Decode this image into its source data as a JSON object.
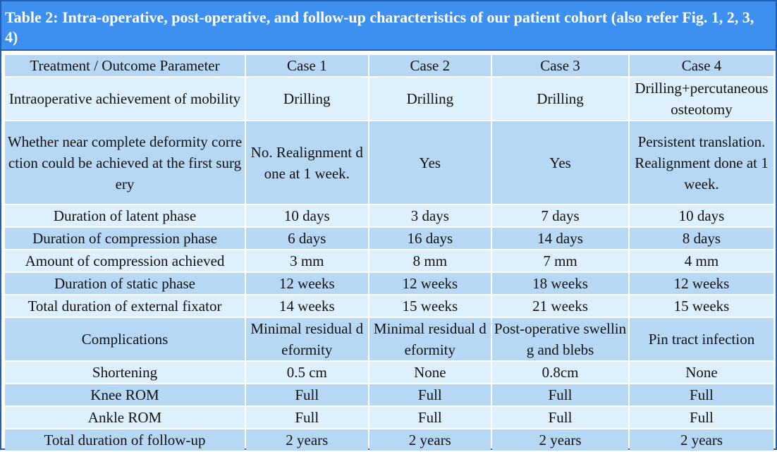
{
  "caption": "Table 2: Intra-operative, post-operative, and follow-up characteristics of our patient cohort (also refer Fig. 1, 2, 3, 4)",
  "header": [
    "Treatment / Outcome Parameter",
    "Case 1",
    "Case 2",
    "Case 3",
    "Case 4"
  ],
  "rows": [
    {
      "cells": [
        "Intraoperative achievement of mobility",
        "Drilling",
        "Drilling",
        "Drilling",
        "Drilling+percutaneous osteotomy"
      ]
    },
    {
      "cells": [
        "Whether near complete deformity correction could be achieved at the first surgery",
        "No. Realignment done at 1 week.",
        "Yes",
        "Yes",
        "Persistent translation. Realignment done at 1 week."
      ]
    },
    {
      "cells": [
        "Duration of latent phase",
        "10 days",
        "3 days",
        "7 days",
        "10 days"
      ]
    },
    {
      "cells": [
        "Duration of compression phase",
        "6 days",
        "16 days",
        "14 days",
        "8 days"
      ]
    },
    {
      "cells": [
        "Amount of compression achieved",
        "3 mm",
        "8 mm",
        "7 mm",
        "4 mm"
      ]
    },
    {
      "cells": [
        "Duration of static phase",
        "12 weeks",
        "12 weeks",
        "18 weeks",
        "12 weeks"
      ]
    },
    {
      "cells": [
        "Total duration of external fixator",
        "14 weeks",
        "15 weeks",
        "21 weeks",
        "15 weeks"
      ]
    },
    {
      "cells": [
        "Complications",
        "Minimal residual deformity",
        "Minimal residual deformity",
        "Post-operative swelling and blebs",
        "Pin tract infection"
      ]
    },
    {
      "cells": [
        "Shortening",
        "0.5 cm",
        "None",
        "0.8cm",
        "None"
      ]
    },
    {
      "cells": [
        "Knee ROM",
        "Full",
        "Full",
        "Full",
        "Full"
      ]
    },
    {
      "cells": [
        "Ankle ROM",
        "Full",
        "Full",
        "Full",
        "Full"
      ]
    },
    {
      "cells": [
        "Total duration of follow-up",
        "2 years",
        "2 years",
        "2 years",
        "2 years"
      ]
    }
  ],
  "colors": {
    "caption_bg": "#3d8ff0",
    "border": "#1f5fb8",
    "row_dark": "#b6d8f4",
    "row_light": "#def0fb"
  }
}
